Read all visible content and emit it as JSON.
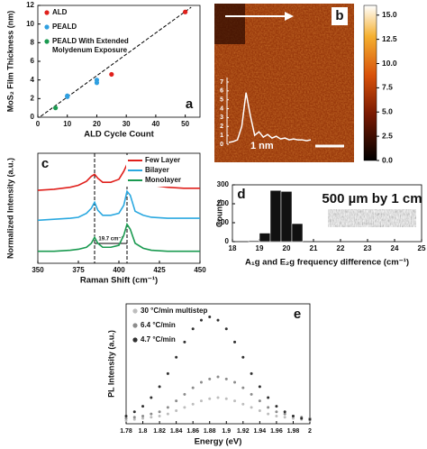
{
  "chart_data": [
    {
      "type": "scatter",
      "label": "a",
      "x_label": "ALD Cycle Count",
      "y_label": "MoS₂ Film Thickness (nm)",
      "xlim": [
        0,
        55
      ],
      "xticks": [
        0,
        10,
        20,
        30,
        40,
        50
      ],
      "ylim": [
        0,
        12
      ],
      "yticks": [
        0,
        2,
        4,
        6,
        8,
        10,
        12
      ],
      "legend": "upper left",
      "series": [
        {
          "name": "ALD",
          "color": "#e0201c",
          "x": [
            25,
            50
          ],
          "values": [
            4.6,
            11.3
          ]
        },
        {
          "name": "PEALD",
          "color": "#2f9fe0",
          "x": [
            10,
            10,
            20,
            20
          ],
          "values": [
            2.2,
            2.3,
            3.7,
            4.0
          ]
        },
        {
          "name": "PEALD With Extended Molydenum Exposure",
          "color": "#1a9a50",
          "x": [
            6
          ],
          "values": [
            1.0
          ]
        }
      ],
      "fit": {
        "x": [
          1,
          52
        ],
        "y": [
          0.1,
          11.8
        ]
      }
    },
    {
      "type": "image",
      "label": "b",
      "clim": [
        0,
        16
      ],
      "cticks": [
        {
          "value": 0,
          "label": "0.0"
        },
        {
          "value": 2.5,
          "label": "2.5"
        },
        {
          "value": 5,
          "label": "5.0"
        },
        {
          "value": 7.5,
          "label": "7.5"
        },
        {
          "value": 10,
          "label": "10.0"
        },
        {
          "value": 12.5,
          "label": "12.5"
        },
        {
          "value": 15,
          "label": "15.0"
        }
      ],
      "inset": {
        "ylim": [
          0,
          7.5
        ],
        "yticks": [
          0,
          1,
          2,
          3,
          4,
          5,
          6,
          7
        ],
        "annotation": "1 nm",
        "values": [
          0.2,
          0.3,
          0.5,
          2.0,
          5.8,
          3.2,
          1.0,
          1.4,
          0.8,
          1.1,
          0.7,
          0.9,
          0.6,
          0.7,
          0.5,
          0.6,
          0.5,
          0.5,
          0.4,
          0.5
        ]
      }
    },
    {
      "type": "line",
      "label": "c",
      "x_label": "Raman Shift (cm⁻¹)",
      "y_label": "Normalized Intensity (a.u.)",
      "xlim": [
        350,
        450
      ],
      "xticks": [
        350,
        375,
        400,
        425,
        450
      ],
      "ylim": [
        0,
        11
      ],
      "legend": "upper right",
      "vlines": [
        385,
        405
      ],
      "annotation": "19.7 cm⁻¹",
      "x": [
        350,
        360,
        370,
        375,
        380,
        383,
        385,
        387,
        390,
        395,
        400,
        403,
        405,
        407,
        410,
        415,
        420,
        430,
        440,
        450
      ],
      "series": [
        {
          "name": "Few Layer",
          "color": "#e0201c",
          "values": [
            7.3,
            7.4,
            7.6,
            7.8,
            8.2,
            8.7,
            8.9,
            8.5,
            8.1,
            8.1,
            8.4,
            9.2,
            9.9,
            9.6,
            8.6,
            8.0,
            7.8,
            7.6,
            7.5,
            7.5
          ]
        },
        {
          "name": "Bilayer",
          "color": "#2aa8e0",
          "values": [
            4.3,
            4.4,
            4.5,
            4.6,
            5.0,
            5.5,
            6.1,
            5.3,
            4.8,
            4.8,
            5.0,
            5.8,
            7.2,
            6.8,
            5.2,
            4.8,
            4.6,
            4.5,
            4.5,
            4.5
          ]
        },
        {
          "name": "Monolayer",
          "color": "#1a9a50",
          "values": [
            1.2,
            1.2,
            1.3,
            1.4,
            1.6,
            2.0,
            2.6,
            2.0,
            1.6,
            1.6,
            1.8,
            2.8,
            3.9,
            3.4,
            2.0,
            1.5,
            1.3,
            1.2,
            1.2,
            1.2
          ]
        }
      ]
    },
    {
      "type": "histogram",
      "label": "d",
      "x_label": "A₁g and E₂g frequency difference (cm⁻¹)",
      "y_label": "Counts",
      "xlim": [
        18,
        25
      ],
      "xticks": [
        18,
        19,
        20,
        21,
        22,
        23,
        24,
        25
      ],
      "ylim": [
        0,
        300
      ],
      "yticks": [
        0,
        100,
        200,
        300
      ],
      "bins": [
        18.6,
        19.0,
        19.4,
        19.8,
        20.2,
        20.6
      ],
      "values": [
        5,
        45,
        270,
        265,
        95
      ],
      "color": "#111111",
      "annotation": "500 µm by 1 cm"
    },
    {
      "type": "scatter",
      "label": "e",
      "x_label": "Energy (eV)",
      "y_label": "PL Intensity (a.u.)",
      "xlim": [
        1.78,
        2
      ],
      "xticks": [
        1.78,
        1.8,
        1.82,
        1.84,
        1.86,
        1.88,
        1.9,
        1.92,
        1.94,
        1.96,
        1.98,
        2
      ],
      "ylim": [
        0,
        11
      ],
      "legend": "upper left",
      "x": [
        1.78,
        1.79,
        1.8,
        1.81,
        1.82,
        1.83,
        1.84,
        1.85,
        1.86,
        1.87,
        1.88,
        1.89,
        1.9,
        1.91,
        1.92,
        1.93,
        1.94,
        1.95,
        1.96,
        1.97,
        1.98,
        1.99,
        2
      ],
      "series": [
        {
          "name": "30 °C/min multistep",
          "color": "#bdbdbd",
          "values": [
            0.3,
            0.4,
            0.5,
            0.6,
            0.7,
            0.9,
            1.2,
            1.5,
            1.8,
            2.1,
            2.3,
            2.4,
            2.3,
            2.1,
            1.8,
            1.5,
            1.2,
            0.9,
            0.7,
            0.6,
            0.5,
            0.4,
            0.3
          ]
        },
        {
          "name": "6.4 °C/min",
          "color": "#8c8c8c",
          "values": [
            0.5,
            0.6,
            0.7,
            0.9,
            1.1,
            1.5,
            2.1,
            2.7,
            3.3,
            3.8,
            4.1,
            4.3,
            4.1,
            3.8,
            3.3,
            2.7,
            2.1,
            1.5,
            1.1,
            0.9,
            0.7,
            0.6,
            0.5
          ]
        },
        {
          "name": "4.7 °C/min",
          "color": "#303030",
          "values": [
            0.7,
            1.1,
            1.6,
            2.4,
            3.4,
            4.6,
            6.1,
            7.5,
            8.7,
            9.5,
            9.8,
            9.5,
            8.7,
            7.5,
            6.1,
            4.6,
            3.4,
            2.4,
            1.6,
            1.1,
            0.7,
            0.5,
            0.4
          ]
        }
      ]
    }
  ]
}
